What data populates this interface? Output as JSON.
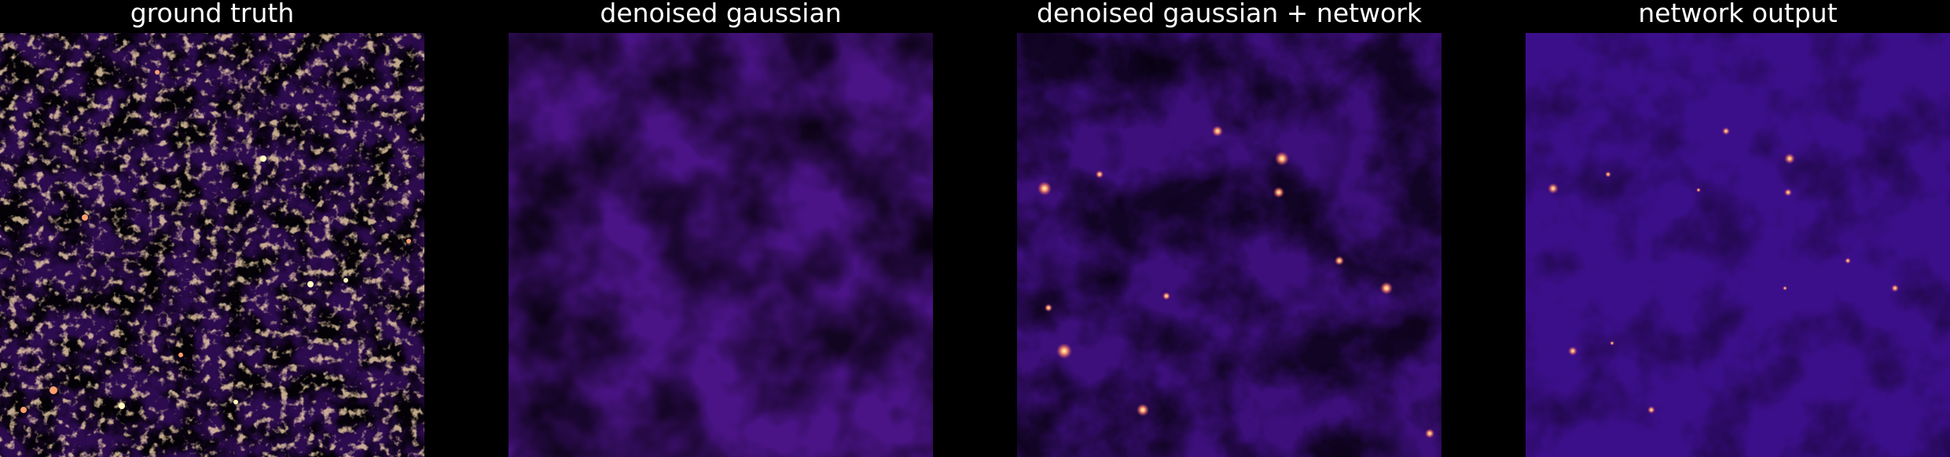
{
  "figure": {
    "background": "#000000",
    "colormap": "magma",
    "panels": [
      {
        "title": "ground truth",
        "field": "clumpy high-contrast density map",
        "palette": [
          "#000004",
          "#3b0f70",
          "#8c2981",
          "#de4968",
          "#fe9f6d",
          "#fcfdbf"
        ]
      },
      {
        "title": "denoised gaussian",
        "field": "smooth low-contrast density map",
        "palette": [
          "#1e0a3e",
          "#4a1486",
          "#6d1f94",
          "#8c2981"
        ]
      },
      {
        "title": "denoised gaussian + network",
        "field": "smooth field with bright compact peaks",
        "palette": [
          "#2a0a5a",
          "#4d1691",
          "#8c2981",
          "#de4968",
          "#fe9f6d",
          "#fcfdbf"
        ]
      },
      {
        "title": "network output",
        "field": "flat field with sparse bright peaks",
        "palette": [
          "#3c0f8a",
          "#5a1a9c",
          "#b73779",
          "#fe9f6d",
          "#fcfdbf"
        ]
      }
    ]
  }
}
